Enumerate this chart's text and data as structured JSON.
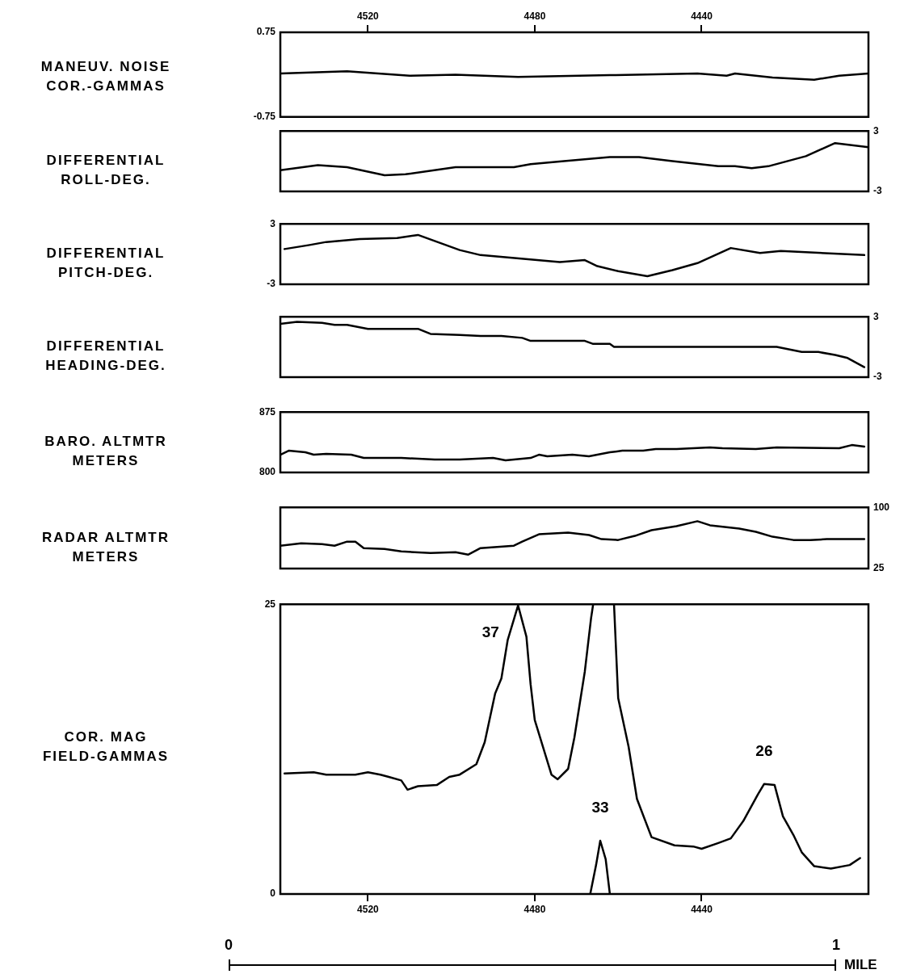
{
  "chart_data": [
    {
      "type": "line",
      "ylabel": "MANEUV. NOISE\nCOR.-GAMMAS",
      "xlim": [
        4541,
        4400
      ],
      "xticks": [
        4520,
        4480,
        4440
      ],
      "ylim": [
        -0.75,
        0.75
      ],
      "yticks": [
        -0.75,
        0.75
      ],
      "series": [
        {
          "color": "#000000",
          "x": [
            4541,
            4525,
            4510,
            4499,
            4484,
            4462,
            4441,
            4434,
            4432,
            4423,
            4413,
            4407,
            4400
          ],
          "values": [
            0.02,
            0.06,
            -0.02,
            0,
            -0.04,
            -0.01,
            0.02,
            -0.02,
            0.02,
            -0.05,
            -0.09,
            -0.02,
            0.02
          ]
        }
      ]
    },
    {
      "type": "line",
      "ylabel": "DIFFERENTIAL\nROLL-DEG.",
      "xlim": [
        4541,
        4400
      ],
      "y2lim": [
        -3,
        3
      ],
      "y2ticks": [
        -3,
        3
      ],
      "tick_labels": "y",
      "series": [
        {
          "color": "#000000",
          "axis": "y2",
          "x": [
            4541,
            4532,
            4525,
            4516,
            4511,
            4499,
            4485,
            4481,
            4473,
            4462,
            4455,
            4447,
            4436,
            4432,
            4428,
            4424,
            4415,
            4408,
            4400
          ],
          "values": [
            -0.9,
            -0.4,
            -0.6,
            -1.4,
            -1.3,
            -0.6,
            -0.6,
            -0.3,
            0,
            0.4,
            0.4,
            0,
            -0.5,
            -0.5,
            -0.7,
            -0.5,
            0.5,
            1.8,
            1.4
          ]
        }
      ]
    },
    {
      "type": "line",
      "ylabel": "DIFFERENTIAL\nPITCH-DEG.",
      "xlim": [
        4541,
        4400
      ],
      "ylim": [
        -3,
        3
      ],
      "yticks": [
        -3,
        3
      ],
      "tick_labels": "y",
      "series": [
        {
          "color": "#000000",
          "x": [
            4540,
            4534,
            4530,
            4522,
            4513,
            4508,
            4498,
            4493,
            4474,
            4468,
            4465,
            4460,
            4453,
            4447,
            4441,
            4433,
            4426,
            4421,
            4401
          ],
          "values": [
            0.5,
            0.9,
            1.2,
            1.5,
            1.6,
            1.9,
            0.4,
            -0.1,
            -0.8,
            -0.6,
            -1.2,
            -1.7,
            -2.2,
            -1.6,
            -0.9,
            0.6,
            0.1,
            0.3,
            -0.1
          ]
        }
      ]
    },
    {
      "type": "line",
      "ylabel": "DIFFERENTIAL\nHEADING-DEG.",
      "xlim": [
        4541,
        4400
      ],
      "y2lim": [
        -3,
        3
      ],
      "y2ticks": [
        -3,
        3
      ],
      "tick_labels": "y",
      "series": [
        {
          "color": "#000000",
          "axis": "y2",
          "x": [
            4541,
            4537,
            4531,
            4528,
            4525,
            4520,
            4510,
            4508,
            4505,
            4498,
            4493,
            4488,
            4483,
            4481,
            4468,
            4466,
            4462,
            4461,
            4422,
            4416,
            4412,
            4408,
            4405,
            4401
          ],
          "values": [
            2.3,
            2.5,
            2.4,
            2.2,
            2.2,
            1.8,
            1.8,
            1.8,
            1.3,
            1.2,
            1.1,
            1.1,
            0.9,
            0.6,
            0.6,
            0.3,
            0.3,
            0,
            0,
            -0.5,
            -0.5,
            -0.8,
            -1.1,
            -2
          ]
        }
      ]
    },
    {
      "type": "line",
      "ylabel": "BARO. ALTMTR\nMETERS",
      "xlim": [
        4541,
        4400
      ],
      "ylim": [
        800,
        875
      ],
      "yticks": [
        800,
        875
      ],
      "tick_labels": "y",
      "series": [
        {
          "color": "#000000",
          "x": [
            4541,
            4539,
            4535,
            4533,
            4530,
            4524,
            4521,
            4512,
            4504,
            4498,
            4490,
            4487,
            4481,
            4479,
            4477,
            4471,
            4467,
            4462,
            4459,
            4454,
            4451,
            4446,
            4438,
            4435,
            4427,
            4422,
            4407,
            4404,
            4401
          ],
          "values": [
            822,
            827,
            825,
            822,
            823,
            822,
            818,
            818,
            816,
            816,
            818,
            815,
            818,
            822,
            820,
            822,
            820,
            825,
            827,
            827,
            829,
            829,
            831,
            830,
            829,
            831,
            830,
            834,
            832
          ]
        }
      ]
    },
    {
      "type": "line",
      "ylabel": "RADAR ALTMTR\nMETERS",
      "xlim": [
        4541,
        4400
      ],
      "y2lim": [
        25,
        100
      ],
      "y2ticks": [
        25,
        100
      ],
      "tick_labels": "y",
      "series": [
        {
          "color": "#000000",
          "axis": "y2",
          "x": [
            4541,
            4536,
            4531,
            4528,
            4525,
            4523,
            4521,
            4516,
            4512,
            4505,
            4499,
            4496,
            4493,
            4485,
            4483,
            4479,
            4472,
            4467,
            4464,
            4460,
            4456,
            4452,
            4446,
            4441,
            4438,
            4431,
            4427,
            4423,
            4418,
            4414,
            4410,
            4401
          ],
          "values": [
            53,
            56,
            55,
            53,
            58,
            58,
            50,
            49,
            46,
            44,
            45,
            42,
            50,
            53,
            58,
            67,
            69,
            66,
            61,
            60,
            65,
            72,
            77,
            83,
            78,
            74,
            70,
            64,
            60,
            60,
            61,
            61
          ]
        }
      ]
    },
    {
      "type": "line",
      "ylabel": "COR. MAG\nFIELD-GAMMAS",
      "xlim": [
        4541,
        4400
      ],
      "xticks": [
        4520,
        4480,
        4440
      ],
      "ylim": [
        0,
        25
      ],
      "yticks": [
        0,
        25
      ],
      "annotations": [
        {
          "text": "37",
          "x": 4484,
          "y": 24.9
        },
        {
          "text": "33",
          "x": 4464.3,
          "y": 4.6
        },
        {
          "text": "26",
          "x": 4425,
          "y": 9.5
        },
        "0",
        "1",
        "MILE"
      ],
      "series": [
        {
          "color": "#000000",
          "x": [
            4540,
            4533,
            4530,
            4523,
            4520,
            4517,
            4515,
            4512,
            4510.5,
            4508,
            4503.5,
            4500.5,
            4498,
            4494,
            4492,
            4489.5,
            4488,
            4486.5,
            4484,
            4482,
            4481,
            4480,
            4476,
            4474.5,
            4472,
            4470.5,
            4468,
            4466.5,
            4466,
            4464,
            4461,
            4460,
            4457.5,
            4455.5,
            4452,
            4446.5,
            4442,
            4440,
            4436,
            4433,
            4430,
            4426.5,
            4425,
            4422.5,
            4420.5,
            4418,
            4416,
            4413,
            4409,
            4404.5,
            4402
          ],
          "values": [
            10.4,
            10.5,
            10.3,
            10.3,
            10.5,
            10.3,
            10.1,
            9.8,
            9.0,
            9.3,
            9.4,
            10.1,
            10.3,
            11.2,
            13.1,
            17.3,
            18.6,
            21.9,
            24.9,
            22.2,
            18.1,
            15.0,
            10.3,
            9.9,
            10.8,
            13.5,
            19.2,
            23.8,
            25,
            null,
            25,
            16.9,
            12.7,
            8.2,
            4.9,
            4.2,
            4.1,
            3.9,
            4.4,
            4.8,
            6.3,
            8.6,
            9.5,
            9.4,
            6.7,
            5.1,
            3.6,
            2.4,
            2.2,
            2.5,
            3.1
          ]
        },
        {
          "color": "#000000",
          "x": [
            4466.7,
            4465.3,
            4464.3,
            4463,
            4462
          ],
          "values": [
            0,
            2.5,
            4.6,
            3.0,
            0
          ]
        }
      ]
    }
  ]
}
